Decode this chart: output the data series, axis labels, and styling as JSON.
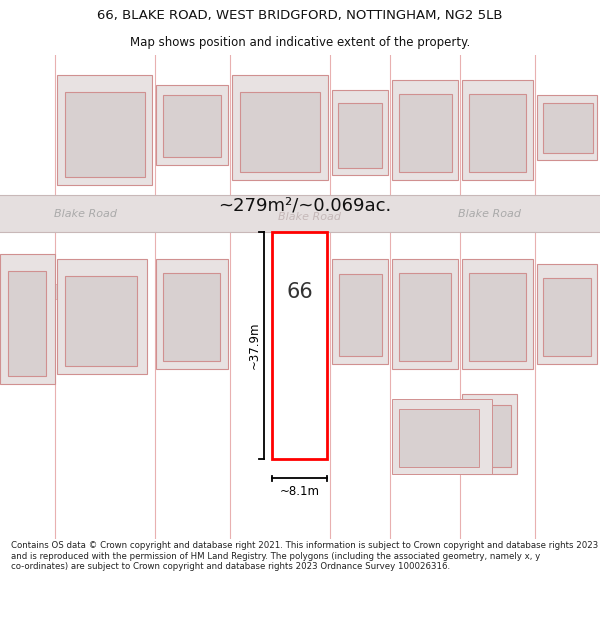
{
  "title_line1": "66, BLAKE ROAD, WEST BRIDGFORD, NOTTINGHAM, NG2 5LB",
  "title_line2": "Map shows position and indicative extent of the property.",
  "footer_text": "Contains OS data © Crown copyright and database right 2021. This information is subject to Crown copyright and database rights 2023 and is reproduced with the permission of HM Land Registry. The polygons (including the associated geometry, namely x, y co-ordinates) are subject to Crown copyright and database rights 2023 Ordnance Survey 100026316.",
  "area_label": "~279m²/~0.069ac.",
  "road_label": "Blake Road",
  "road_label_ghost": "Blake Road",
  "house_number": "66",
  "dim_height": "~37.9m",
  "dim_width": "~8.1m",
  "bg_color": "#f7f3f3",
  "road_color": "#e5dfdf",
  "plot_outline_color": "#ff0000",
  "dim_line_color": "#000000",
  "building_face": "#e8e2e2",
  "building_edge": "#d09090",
  "inner_face": "#d8d0d0",
  "inner_edge": "#d09090",
  "partition_color": "#e8b0b0",
  "map_bg": "#f7f3f3"
}
